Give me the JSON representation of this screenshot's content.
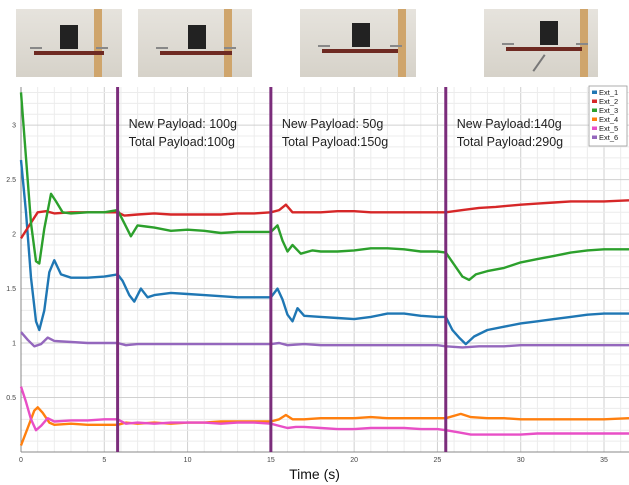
{
  "photos": [
    {
      "name": "photo-no-payload"
    },
    {
      "name": "photo-payload-100g"
    },
    {
      "name": "photo-payload-150g"
    },
    {
      "name": "photo-payload-290g"
    }
  ],
  "chart_data": {
    "type": "line",
    "xlabel": "Time (s)",
    "ylabel": "",
    "xlim": [
      0,
      36.5
    ],
    "ylim": [
      0,
      3.35
    ],
    "xticks": [
      0,
      5,
      10,
      15,
      20,
      25,
      30,
      35
    ],
    "yticks": [
      0.5,
      1,
      1.5,
      2,
      2.5,
      3
    ],
    "grid": true,
    "legend_position": "top-right",
    "events": [
      {
        "x": 5.8,
        "label_line1": "New Payload: 100g",
        "label_line2": "Total Payload:100g"
      },
      {
        "x": 15.0,
        "label_line1": "New Payload: 50g",
        "label_line2": "Total Payload:150g"
      },
      {
        "x": 25.5,
        "label_line1": "New Payload:140g",
        "label_line2": "Total Payload:290g"
      }
    ],
    "event_color": "#7b2d7b",
    "series": [
      {
        "name": "Ext_1",
        "color": "#1f77b4",
        "points": [
          [
            0,
            2.68
          ],
          [
            0.3,
            2.2
          ],
          [
            0.6,
            1.6
          ],
          [
            0.9,
            1.2
          ],
          [
            1.1,
            1.12
          ],
          [
            1.4,
            1.3
          ],
          [
            1.7,
            1.65
          ],
          [
            2.0,
            1.76
          ],
          [
            2.4,
            1.63
          ],
          [
            3,
            1.6
          ],
          [
            4,
            1.6
          ],
          [
            5,
            1.61
          ],
          [
            5.8,
            1.63
          ],
          [
            6.1,
            1.57
          ],
          [
            6.5,
            1.44
          ],
          [
            6.8,
            1.38
          ],
          [
            7.2,
            1.5
          ],
          [
            7.6,
            1.42
          ],
          [
            8,
            1.44
          ],
          [
            9,
            1.46
          ],
          [
            10,
            1.45
          ],
          [
            11,
            1.44
          ],
          [
            12,
            1.43
          ],
          [
            13,
            1.42
          ],
          [
            14,
            1.42
          ],
          [
            15,
            1.42
          ],
          [
            15.4,
            1.5
          ],
          [
            15.7,
            1.4
          ],
          [
            16.0,
            1.26
          ],
          [
            16.3,
            1.2
          ],
          [
            16.6,
            1.32
          ],
          [
            17,
            1.25
          ],
          [
            18,
            1.24
          ],
          [
            19,
            1.23
          ],
          [
            20,
            1.22
          ],
          [
            21,
            1.24
          ],
          [
            22,
            1.27
          ],
          [
            23,
            1.27
          ],
          [
            24,
            1.25
          ],
          [
            25,
            1.24
          ],
          [
            25.5,
            1.24
          ],
          [
            25.9,
            1.12
          ],
          [
            26.3,
            1.05
          ],
          [
            26.7,
            0.99
          ],
          [
            27.2,
            1.06
          ],
          [
            28,
            1.12
          ],
          [
            29,
            1.15
          ],
          [
            30,
            1.18
          ],
          [
            31,
            1.2
          ],
          [
            32,
            1.22
          ],
          [
            33,
            1.24
          ],
          [
            34,
            1.26
          ],
          [
            35,
            1.27
          ],
          [
            36.5,
            1.27
          ]
        ]
      },
      {
        "name": "Ext_2",
        "color": "#d62728",
        "points": [
          [
            0,
            1.96
          ],
          [
            0.5,
            2.08
          ],
          [
            1.0,
            2.2
          ],
          [
            1.5,
            2.21
          ],
          [
            2,
            2.19
          ],
          [
            3,
            2.2
          ],
          [
            4,
            2.2
          ],
          [
            5,
            2.2
          ],
          [
            5.8,
            2.2
          ],
          [
            6.2,
            2.17
          ],
          [
            7,
            2.18
          ],
          [
            8,
            2.19
          ],
          [
            9,
            2.18
          ],
          [
            10,
            2.18
          ],
          [
            11,
            2.18
          ],
          [
            12,
            2.18
          ],
          [
            13,
            2.19
          ],
          [
            14,
            2.19
          ],
          [
            15,
            2.2
          ],
          [
            15.5,
            2.22
          ],
          [
            15.9,
            2.27
          ],
          [
            16.3,
            2.2
          ],
          [
            17,
            2.2
          ],
          [
            18,
            2.2
          ],
          [
            19,
            2.21
          ],
          [
            20,
            2.21
          ],
          [
            21,
            2.2
          ],
          [
            22,
            2.2
          ],
          [
            23,
            2.2
          ],
          [
            24,
            2.2
          ],
          [
            25,
            2.2
          ],
          [
            25.5,
            2.2
          ],
          [
            26.5,
            2.22
          ],
          [
            27.5,
            2.24
          ],
          [
            28.5,
            2.25
          ],
          [
            30,
            2.27
          ],
          [
            31,
            2.28
          ],
          [
            32,
            2.29
          ],
          [
            33,
            2.3
          ],
          [
            35,
            2.3
          ],
          [
            36.5,
            2.31
          ]
        ]
      },
      {
        "name": "Ext_3",
        "color": "#2ca02c",
        "points": [
          [
            0,
            3.3
          ],
          [
            0.3,
            2.7
          ],
          [
            0.6,
            2.1
          ],
          [
            0.9,
            1.75
          ],
          [
            1.1,
            1.73
          ],
          [
            1.4,
            2.05
          ],
          [
            1.8,
            2.37
          ],
          [
            2.1,
            2.3
          ],
          [
            2.5,
            2.2
          ],
          [
            3,
            2.19
          ],
          [
            4,
            2.2
          ],
          [
            5,
            2.2
          ],
          [
            5.8,
            2.22
          ],
          [
            6.2,
            2.1
          ],
          [
            6.6,
            1.98
          ],
          [
            7.0,
            2.08
          ],
          [
            7.5,
            2.07
          ],
          [
            8,
            2.06
          ],
          [
            9,
            2.03
          ],
          [
            10,
            2.04
          ],
          [
            11,
            2.03
          ],
          [
            12,
            2.01
          ],
          [
            13,
            2.02
          ],
          [
            14,
            2.02
          ],
          [
            15,
            2.02
          ],
          [
            15.4,
            2.08
          ],
          [
            15.7,
            1.94
          ],
          [
            16.0,
            1.84
          ],
          [
            16.3,
            1.9
          ],
          [
            16.8,
            1.82
          ],
          [
            17.5,
            1.85
          ],
          [
            18,
            1.84
          ],
          [
            19,
            1.84
          ],
          [
            20,
            1.85
          ],
          [
            21,
            1.87
          ],
          [
            22,
            1.87
          ],
          [
            23,
            1.86
          ],
          [
            24,
            1.84
          ],
          [
            25,
            1.84
          ],
          [
            25.5,
            1.83
          ],
          [
            26.0,
            1.72
          ],
          [
            26.5,
            1.61
          ],
          [
            26.9,
            1.58
          ],
          [
            27.3,
            1.63
          ],
          [
            28,
            1.66
          ],
          [
            29,
            1.69
          ],
          [
            30,
            1.74
          ],
          [
            31,
            1.77
          ],
          [
            32,
            1.8
          ],
          [
            33,
            1.83
          ],
          [
            34,
            1.85
          ],
          [
            35,
            1.86
          ],
          [
            36.5,
            1.86
          ]
        ]
      },
      {
        "name": "Ext_4",
        "color": "#ff7f0e",
        "points": [
          [
            0,
            0.06
          ],
          [
            0.4,
            0.22
          ],
          [
            0.8,
            0.38
          ],
          [
            1.0,
            0.41
          ],
          [
            1.3,
            0.36
          ],
          [
            1.7,
            0.27
          ],
          [
            2,
            0.25
          ],
          [
            3,
            0.26
          ],
          [
            4,
            0.25
          ],
          [
            5,
            0.25
          ],
          [
            5.8,
            0.25
          ],
          [
            6.3,
            0.27
          ],
          [
            7,
            0.26
          ],
          [
            8,
            0.27
          ],
          [
            9,
            0.26
          ],
          [
            10,
            0.27
          ],
          [
            11,
            0.27
          ],
          [
            12,
            0.28
          ],
          [
            13,
            0.28
          ],
          [
            14,
            0.28
          ],
          [
            15,
            0.28
          ],
          [
            15.5,
            0.3
          ],
          [
            15.9,
            0.34
          ],
          [
            16.3,
            0.3
          ],
          [
            17,
            0.3
          ],
          [
            18,
            0.31
          ],
          [
            19,
            0.31
          ],
          [
            20,
            0.31
          ],
          [
            21,
            0.32
          ],
          [
            22,
            0.31
          ],
          [
            23,
            0.31
          ],
          [
            24,
            0.31
          ],
          [
            25,
            0.31
          ],
          [
            25.5,
            0.31
          ],
          [
            26.4,
            0.35
          ],
          [
            27,
            0.32
          ],
          [
            28,
            0.31
          ],
          [
            29,
            0.31
          ],
          [
            30,
            0.3
          ],
          [
            31,
            0.3
          ],
          [
            32,
            0.3
          ],
          [
            33,
            0.3
          ],
          [
            35,
            0.3
          ],
          [
            36.5,
            0.31
          ]
        ]
      },
      {
        "name": "Ext_5",
        "color": "#e84fc6",
        "points": [
          [
            0,
            0.6
          ],
          [
            0.3,
            0.46
          ],
          [
            0.6,
            0.3
          ],
          [
            0.9,
            0.2
          ],
          [
            1.2,
            0.24
          ],
          [
            1.6,
            0.31
          ],
          [
            2,
            0.28
          ],
          [
            3,
            0.29
          ],
          [
            4,
            0.29
          ],
          [
            5,
            0.3
          ],
          [
            5.8,
            0.3
          ],
          [
            6.3,
            0.26
          ],
          [
            7,
            0.27
          ],
          [
            8,
            0.26
          ],
          [
            9,
            0.27
          ],
          [
            10,
            0.27
          ],
          [
            11,
            0.27
          ],
          [
            12,
            0.26
          ],
          [
            13,
            0.27
          ],
          [
            14,
            0.27
          ],
          [
            15,
            0.26
          ],
          [
            15.5,
            0.24
          ],
          [
            16,
            0.22
          ],
          [
            16.5,
            0.23
          ],
          [
            17,
            0.23
          ],
          [
            18,
            0.22
          ],
          [
            19,
            0.21
          ],
          [
            20,
            0.21
          ],
          [
            21,
            0.22
          ],
          [
            22,
            0.22
          ],
          [
            23,
            0.22
          ],
          [
            24,
            0.21
          ],
          [
            25,
            0.21
          ],
          [
            25.5,
            0.2
          ],
          [
            26.3,
            0.18
          ],
          [
            27,
            0.16
          ],
          [
            28,
            0.16
          ],
          [
            29,
            0.16
          ],
          [
            30,
            0.16
          ],
          [
            31,
            0.17
          ],
          [
            32,
            0.17
          ],
          [
            33,
            0.17
          ],
          [
            35,
            0.17
          ],
          [
            36.5,
            0.17
          ]
        ]
      },
      {
        "name": "Ext_6",
        "color": "#9467bd",
        "points": [
          [
            0,
            1.1
          ],
          [
            0.4,
            1.03
          ],
          [
            0.8,
            0.97
          ],
          [
            1.2,
            0.99
          ],
          [
            1.6,
            1.05
          ],
          [
            2,
            1.02
          ],
          [
            3,
            1.01
          ],
          [
            4,
            1.0
          ],
          [
            5,
            1.0
          ],
          [
            5.8,
            1.0
          ],
          [
            6.3,
            0.98
          ],
          [
            7,
            0.99
          ],
          [
            8,
            0.99
          ],
          [
            9,
            0.99
          ],
          [
            10,
            0.99
          ],
          [
            11,
            0.99
          ],
          [
            12,
            0.99
          ],
          [
            13,
            0.99
          ],
          [
            14,
            0.99
          ],
          [
            15,
            0.99
          ],
          [
            15.5,
            1.0
          ],
          [
            16,
            0.98
          ],
          [
            17,
            0.99
          ],
          [
            18,
            0.98
          ],
          [
            19,
            0.98
          ],
          [
            20,
            0.98
          ],
          [
            21,
            0.98
          ],
          [
            22,
            0.98
          ],
          [
            23,
            0.98
          ],
          [
            24,
            0.98
          ],
          [
            25,
            0.98
          ],
          [
            25.5,
            0.97
          ],
          [
            26.5,
            0.96
          ],
          [
            27.5,
            0.97
          ],
          [
            29,
            0.97
          ],
          [
            30,
            0.98
          ],
          [
            31,
            0.98
          ],
          [
            32,
            0.98
          ],
          [
            33,
            0.98
          ],
          [
            35,
            0.98
          ],
          [
            36.5,
            0.98
          ]
        ]
      }
    ]
  }
}
